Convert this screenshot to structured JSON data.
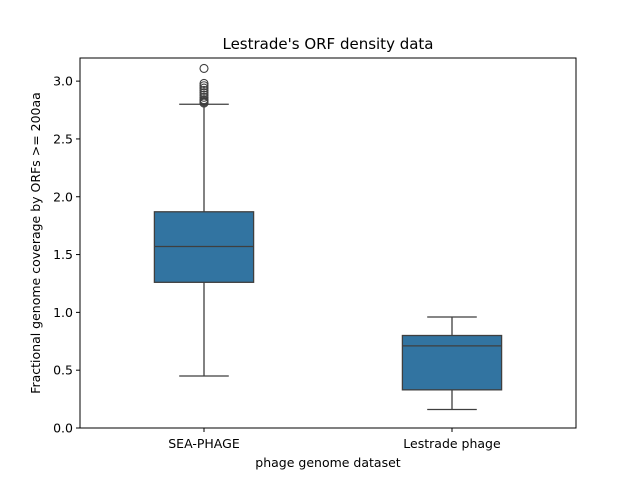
{
  "chart_data": {
    "type": "box",
    "title": "Lestrade's ORF density data",
    "xlabel": "phage genome dataset",
    "ylabel": "Fractional genome coverage by ORFs >= 200aa",
    "ylim": [
      0.0,
      3.2
    ],
    "yticks": [
      0.0,
      0.5,
      1.0,
      1.5,
      2.0,
      2.5,
      3.0
    ],
    "ytick_labels": [
      "0.0",
      "0.5",
      "1.0",
      "1.5",
      "2.0",
      "2.5",
      "3.0"
    ],
    "categories": [
      "SEA-PHAGE",
      "Lestrade phage"
    ],
    "color": "#3274a1",
    "grid": false,
    "boxes": [
      {
        "category": "SEA-PHAGE",
        "whisker_low": 0.45,
        "q1": 1.26,
        "median": 1.57,
        "q3": 1.87,
        "whisker_high": 2.8,
        "outliers": [
          2.81,
          2.82,
          2.83,
          2.84,
          2.86,
          2.88,
          2.9,
          2.92,
          2.94,
          2.96,
          2.98,
          3.11
        ]
      },
      {
        "category": "Lestrade phage",
        "whisker_low": 0.16,
        "q1": 0.33,
        "median": 0.71,
        "q3": 0.8,
        "whisker_high": 0.96,
        "outliers": []
      }
    ]
  }
}
